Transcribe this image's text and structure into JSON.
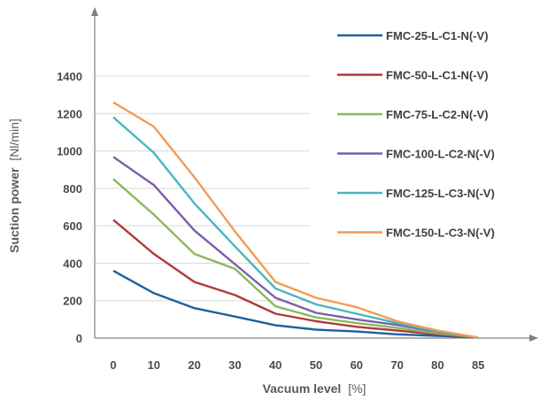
{
  "chart_data": {
    "type": "line",
    "xlabel": {
      "bold": "Vacuum level",
      "unit": "[%]"
    },
    "ylabel": {
      "bold": "Suction power",
      "unit": "[Nl/min]"
    },
    "ylim": [
      0,
      1400
    ],
    "yticks": [
      0,
      200,
      400,
      600,
      800,
      1000,
      1200,
      1400
    ],
    "categories": [
      "0",
      "10",
      "20",
      "30",
      "40",
      "50",
      "60",
      "70",
      "80",
      "85"
    ],
    "grid": "horizontal",
    "legend_position": "right",
    "series": [
      {
        "name": "FMC-25-L-C1-N(-V)",
        "color": "#1f5f9e",
        "values": [
          360,
          240,
          160,
          115,
          68,
          45,
          35,
          20,
          12,
          3
        ]
      },
      {
        "name": "FMC-50-L-C1-N(-V)",
        "color": "#b03a3a",
        "values": [
          632,
          450,
          300,
          230,
          130,
          90,
          60,
          40,
          20,
          3
        ]
      },
      {
        "name": "FMC-75-L-C2-N(-V)",
        "color": "#8cb85c",
        "values": [
          850,
          660,
          450,
          370,
          170,
          110,
          80,
          55,
          25,
          3
        ]
      },
      {
        "name": "FMC-100-L-C2-N(-V)",
        "color": "#7b5ea8",
        "values": [
          968,
          818,
          575,
          395,
          215,
          135,
          100,
          70,
          33,
          3
        ]
      },
      {
        "name": "FMC-125-L-C3-N(-V)",
        "color": "#4bb5c1",
        "values": [
          1180,
          990,
          720,
          490,
          265,
          180,
          130,
          80,
          35,
          3
        ]
      },
      {
        "name": "FMC-150-L-C3-N(-V)",
        "color": "#f49b55",
        "values": [
          1260,
          1130,
          860,
          570,
          300,
          215,
          165,
          90,
          40,
          3
        ]
      }
    ]
  }
}
